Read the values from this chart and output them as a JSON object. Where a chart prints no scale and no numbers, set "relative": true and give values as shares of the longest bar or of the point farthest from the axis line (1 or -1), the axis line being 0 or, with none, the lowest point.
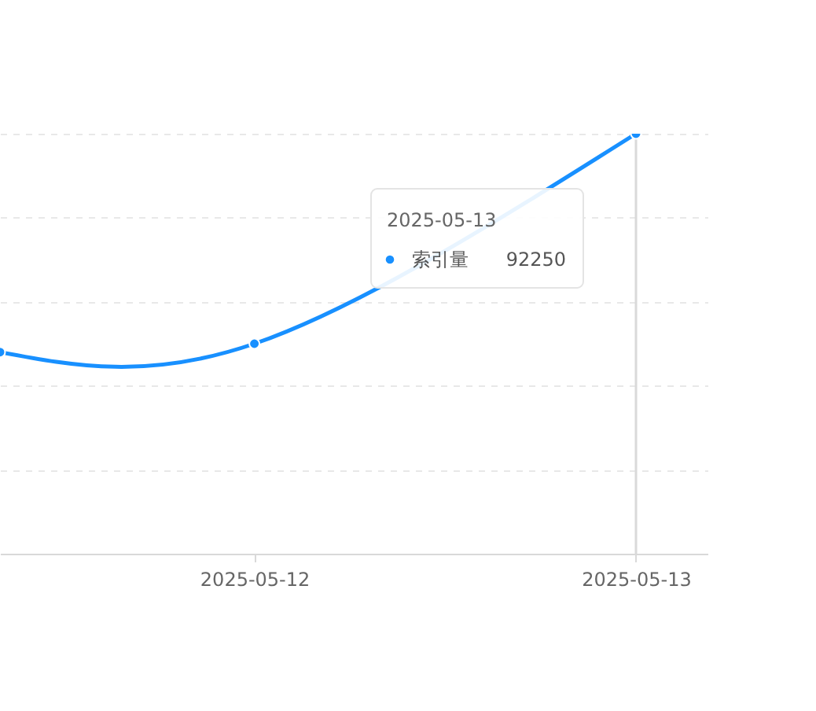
{
  "chart_data": {
    "type": "line",
    "relative": true,
    "xlim": [
      "2025-05-11T08:00",
      "2025-05-13T04:30"
    ],
    "xticks": [
      "2025-05-12",
      "2025-05-13"
    ],
    "grid": "y",
    "marker": "circle",
    "line_style": "solid",
    "series": [
      {
        "name": "索引量",
        "color": "#1890ff",
        "x": [
          "2025-05-11T08:00",
          "2025-05-12",
          "2025-05-13"
        ],
        "values": [
          0.48,
          0.5,
          1
        ]
      }
    ],
    "ref_lines": [
      {
        "axis": "x",
        "value": "2025-05-13",
        "color": "#d9d9d9"
      }
    ],
    "annotations": [
      "2025-05-13",
      "92250"
    ]
  }
}
